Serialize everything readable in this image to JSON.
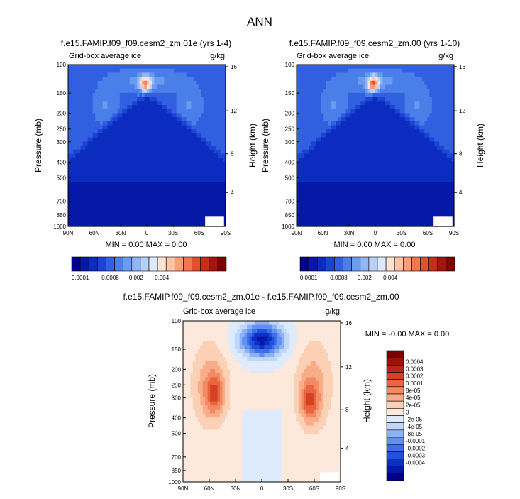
{
  "page_title": "ANN",
  "colors": {
    "abs": [
      "#000090",
      "#0618a8",
      "#0c2cc0",
      "#1c44d4",
      "#3060e0",
      "#4a7ee8",
      "#6b9bef",
      "#90b6f4",
      "#b7d2f8",
      "#dde9fb",
      "#fde3d3",
      "#fcc4a5",
      "#f99e77",
      "#f2764c",
      "#e24f2d",
      "#c62e17",
      "#a6150b",
      "#800000"
    ],
    "diff": [
      "#00008c",
      "#0618a6",
      "#0c30c2",
      "#2150da",
      "#3d6ee6",
      "#628ff0",
      "#8eb1f5",
      "#bed7fb",
      "#ddebfc",
      "#fde8dc",
      "#fcd0b5",
      "#f9ac88",
      "#f28a62",
      "#e9653f",
      "#d44224",
      "#b92614",
      "#9b1208",
      "#7a0000"
    ]
  },
  "chart_data": [
    {
      "type": "heatmap",
      "title": "f.e15.FAMIP.f09_f09.cesm2_zm.01e (yrs 1-4)",
      "left_label": "Grid-box average ice",
      "right_label": "g/kg",
      "ylabel": "Pressure (mb)",
      "ylabel_right": "Height (km)",
      "xticks": [
        "90N",
        "60N",
        "30N",
        "0",
        "30S",
        "60S",
        "90S"
      ],
      "yticks": [
        "100",
        "150",
        "200",
        "250",
        "300",
        "400",
        "500",
        "700",
        "850",
        "1000"
      ],
      "height_ticks": [
        "16",
        "12",
        "8",
        "4"
      ],
      "min_max": "MIN =   0.00   MAX =   0.00",
      "colorbar_labels": [
        "0.0001",
        "0.0008",
        "0.002",
        "0.004"
      ],
      "peak_level": 12
    },
    {
      "type": "heatmap",
      "title": "f.e15.FAMIP.f09_f09.cesm2_zm.00 (yrs 1-10)",
      "left_label": "Grid-box average ice",
      "right_label": "g/kg",
      "ylabel": "Pressure (mb)",
      "ylabel_right": "Height (km)",
      "xticks": [
        "90N",
        "60N",
        "30N",
        "0",
        "30S",
        "60S",
        "90S"
      ],
      "yticks": [
        "100",
        "150",
        "200",
        "250",
        "300",
        "400",
        "500",
        "700",
        "850",
        "1000"
      ],
      "height_ticks": [
        "16",
        "12",
        "8",
        "4"
      ],
      "min_max": "MIN =   0.00   MAX =   0.00",
      "colorbar_labels": [
        "0.0001",
        "0.0008",
        "0.002",
        "0.004"
      ],
      "peak_level": 13
    },
    {
      "type": "heatmap",
      "title": "f.e15.FAMIP.f09_f09.cesm2_zm.01e - f.e15.FAMIP.f09_f09.cesm2_zm.00",
      "left_label": "Grid-box average ice",
      "right_label": "g/kg",
      "ylabel": "Pressure (mb)",
      "ylabel_right": "Height (km)",
      "xticks": [
        "90N",
        "60N",
        "30N",
        "0",
        "30S",
        "60S",
        "90S"
      ],
      "yticks": [
        "100",
        "150",
        "200",
        "250",
        "300",
        "400",
        "500",
        "700",
        "850",
        "1000"
      ],
      "height_ticks": [
        "16",
        "12",
        "8",
        "4"
      ],
      "min_max": "MIN =  -0.00   MAX =   0.00",
      "colorbar_labels": [
        "0.0004",
        "0.0003",
        "0.0002",
        "0.0001",
        "8e-05",
        "4e-05",
        "2e-05",
        "0",
        "-2e-05",
        "-4e-05",
        "-8e-05",
        "-0.0001",
        "-0.0002",
        "-0.0003",
        "-0.0004"
      ]
    }
  ]
}
